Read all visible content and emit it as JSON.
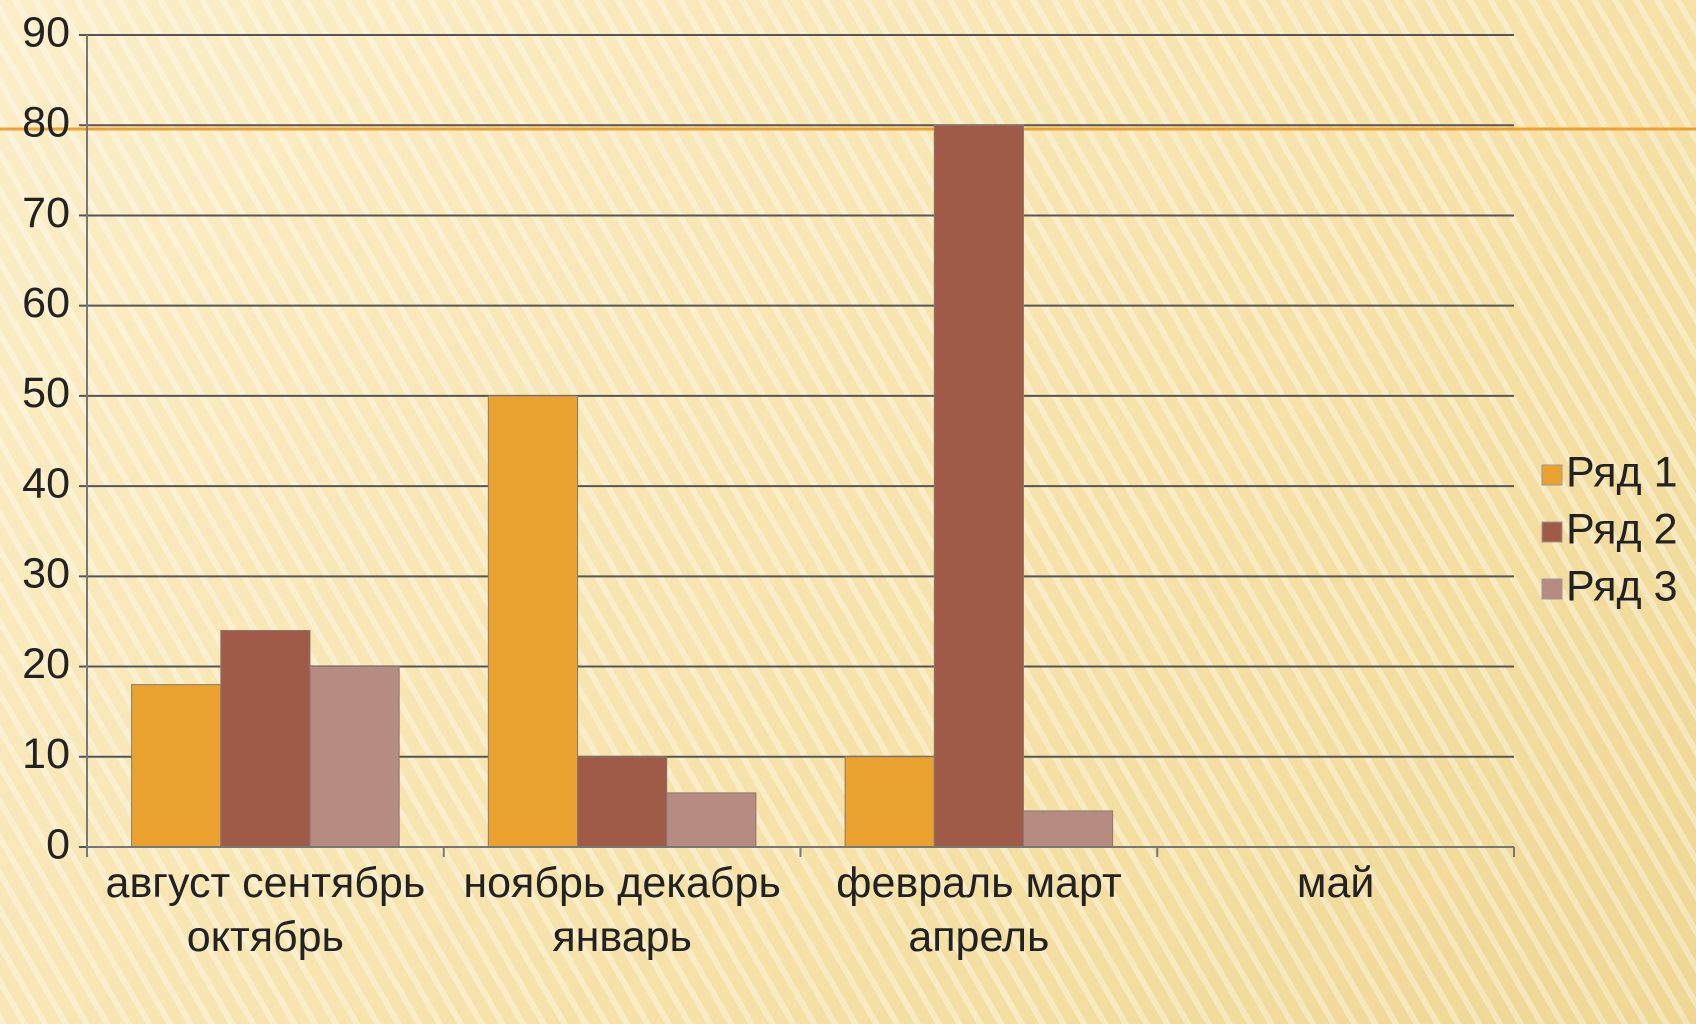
{
  "chart_data": {
    "type": "bar",
    "categories": [
      "август сентябрь октябрь",
      "ноябрь декабрь январь",
      "февраль март апрель",
      "май"
    ],
    "series": [
      {
        "name": "Ряд 1",
        "color": "#e9a230",
        "values": [
          18,
          50,
          10,
          null
        ]
      },
      {
        "name": "Ряд 2",
        "color": "#a05a48",
        "values": [
          24,
          10,
          80,
          null
        ]
      },
      {
        "name": "Ряд 3",
        "color": "#b68b82",
        "values": [
          20,
          6,
          4,
          null
        ]
      }
    ],
    "ylim": [
      0,
      90
    ],
    "yticks": [
      0,
      10,
      20,
      30,
      40,
      50,
      60,
      70,
      80,
      90
    ],
    "grid": true,
    "legend": "right"
  }
}
